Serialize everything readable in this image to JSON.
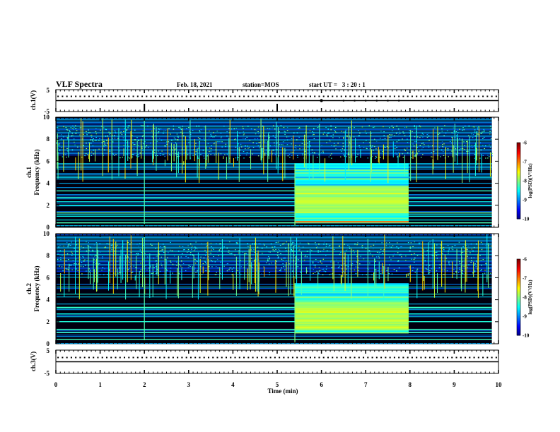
{
  "header": {
    "title": "VLF Spectra",
    "date": "Feb. 18, 2021",
    "station": "station=MOS",
    "start": "start UT =   3 : 20 : 1"
  },
  "chart_data": [
    {
      "type": "line",
      "id": "ch1-voltage",
      "ylabel": "ch.1(V)",
      "ylim": [
        -5,
        5
      ],
      "yticks": [
        "5",
        "-5"
      ],
      "xlim": [
        0,
        10
      ],
      "trace_level": 0,
      "markers_min": [
        6.0,
        6.5,
        6.75,
        7.0,
        7.25,
        7.5,
        7.75
      ]
    },
    {
      "type": "heatmap",
      "id": "ch1-spectrogram",
      "ylabel": "ch.1\nFrequency (kHz)",
      "ylim": [
        0,
        10
      ],
      "yticks": [
        "0",
        "2",
        "4",
        "6",
        "8",
        "10"
      ],
      "xlim": [
        0,
        9.85
      ],
      "enhanced_interval_min": [
        5.4,
        7.97
      ],
      "enhanced_band_khz": [
        0.5,
        5.8
      ],
      "colorbar": {
        "label": "log(PSD)(V²/Hz)",
        "ticks": [
          "-6",
          "-7",
          "-8",
          "-9",
          "-10"
        ],
        "range": [
          -10,
          -6
        ]
      }
    },
    {
      "type": "heatmap",
      "id": "ch2-spectrogram",
      "ylabel": "ch.2\nFrequency (kHz)",
      "ylim": [
        0,
        10
      ],
      "yticks": [
        "0",
        "2",
        "4",
        "6",
        "8",
        "10"
      ],
      "xlim": [
        0,
        9.85
      ],
      "enhanced_interval_min": [
        5.4,
        7.97
      ],
      "enhanced_band_khz": [
        1.0,
        5.5
      ],
      "colorbar": {
        "label": "log(PSD)(V²/Hz)",
        "ticks": [
          "-6",
          "-7",
          "-8",
          "-9",
          "-10"
        ],
        "range": [
          -10,
          -6
        ]
      }
    },
    {
      "type": "line",
      "id": "ch3-voltage",
      "ylabel": "ch.3(V)",
      "ylim": [
        -5,
        5
      ],
      "yticks": [
        "5",
        "-5"
      ],
      "xlim": [
        0,
        10
      ],
      "trace_level": 0
    }
  ],
  "x_axis": {
    "label": "Time (min)",
    "ticks": [
      "0",
      "1",
      "2",
      "3",
      "4",
      "5",
      "6",
      "7",
      "8",
      "9",
      "10"
    ]
  }
}
